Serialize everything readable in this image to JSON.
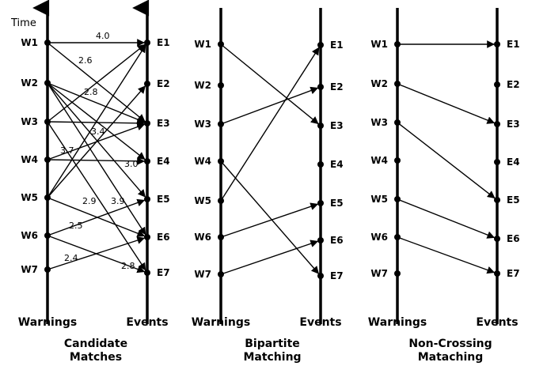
{
  "time_label": "Time",
  "warnings": [
    "W1",
    "W2",
    "W3",
    "W4",
    "W5",
    "W6",
    "W7"
  ],
  "events": [
    "E1",
    "E2",
    "E3",
    "E4",
    "E5",
    "E6",
    "E7"
  ],
  "panels": [
    {
      "id": "candidate",
      "left_label": "Warnings",
      "right_label": "Events",
      "caption": [
        "Candidate",
        "Matches"
      ],
      "edges": [
        {
          "w": 1,
          "e": 1,
          "weight": "4.0"
        },
        {
          "w": 1,
          "e": 3,
          "weight": "2.6"
        },
        {
          "w": 2,
          "e": 3,
          "weight": "2.8"
        },
        {
          "w": 2,
          "e": 4,
          "weight": ""
        },
        {
          "w": 2,
          "e": 5,
          "weight": ""
        },
        {
          "w": 2,
          "e": 6,
          "weight": ""
        },
        {
          "w": 3,
          "e": 1,
          "weight": ""
        },
        {
          "w": 3,
          "e": 3,
          "weight": "3.4"
        },
        {
          "w": 4,
          "e": 3,
          "weight": "3.7"
        },
        {
          "w": 4,
          "e": 4,
          "weight": "3.0"
        },
        {
          "w": 5,
          "e": 1,
          "weight": ""
        },
        {
          "w": 5,
          "e": 6,
          "weight": "2.9"
        },
        {
          "w": 3,
          "e": 7,
          "weight": "3.9"
        },
        {
          "w": 6,
          "e": 5,
          "weight": "2.5"
        },
        {
          "w": 6,
          "e": 7,
          "weight": ""
        },
        {
          "w": 7,
          "e": 6,
          "weight": "2.4"
        },
        {
          "w": 5,
          "e": 2,
          "weight": "2.8"
        }
      ]
    },
    {
      "id": "bipartite",
      "left_label": "Warnings",
      "right_label": "Events",
      "caption": [
        "Bipartite",
        "Matching"
      ],
      "edges": [
        {
          "w": 1,
          "e": 3
        },
        {
          "w": 3,
          "e": 2
        },
        {
          "w": 4,
          "e": 7
        },
        {
          "w": 5,
          "e": 1
        },
        {
          "w": 6,
          "e": 5
        },
        {
          "w": 7,
          "e": 6
        }
      ]
    },
    {
      "id": "noncrossing",
      "left_label": "Warnings",
      "right_label": "Events",
      "caption": [
        "Non-Crossing",
        "Mataching"
      ],
      "edges": [
        {
          "w": 1,
          "e": 1
        },
        {
          "w": 2,
          "e": 3
        },
        {
          "w": 3,
          "e": 5
        },
        {
          "w": 5,
          "e": 6
        },
        {
          "w": 6,
          "e": 7
        }
      ]
    }
  ]
}
